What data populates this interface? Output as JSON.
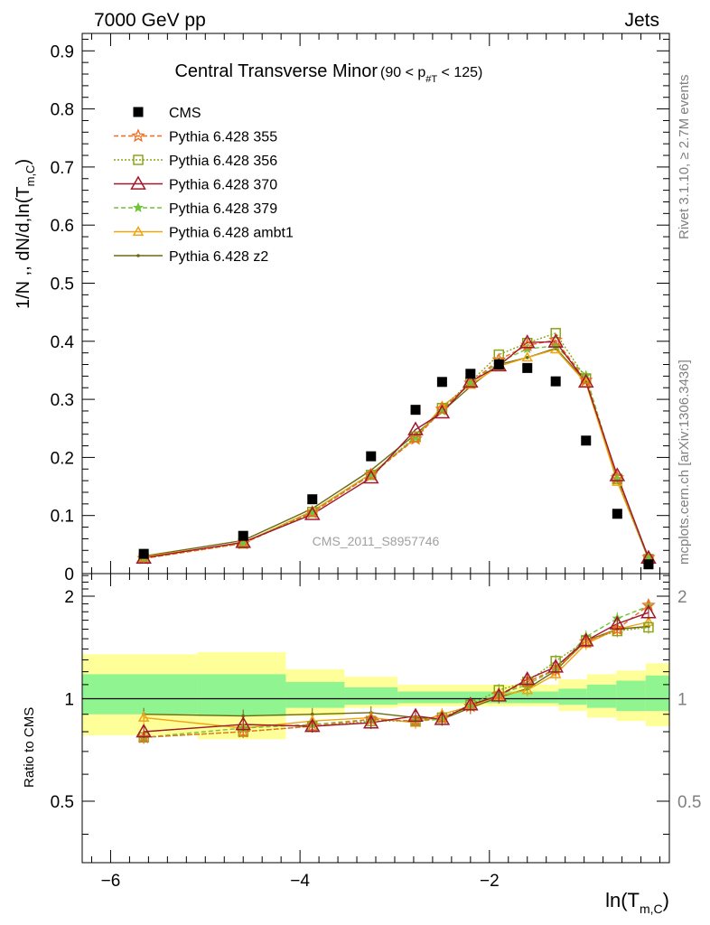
{
  "header": {
    "energy_label": "7000 GeV pp",
    "process_label": "Jets",
    "rivet_label": "Rivet 3.1.10, ≥ 2.7M events",
    "mcplots_label": "mcplots.cern.ch [arXiv:1306.3436]",
    "analysis_label": "CMS_2011_S8957746"
  },
  "colors": {
    "data": "#000000",
    "p355": "#f36b1e",
    "p356": "#8aa51a",
    "p370": "#a0182b",
    "p379": "#72c43a",
    "ambt1": "#f0a413",
    "z2": "#6b6a12",
    "band_inner": "#90f490",
    "band_outer": "#ffff99"
  },
  "chart_data": [
    {
      "type": "scatter",
      "title_main": "Central Transverse Minor",
      "title_cut": "(90 < p",
      "title_cut_sub": "#T",
      "title_cut_end": "  < 125)",
      "ylabel": "1/N ,, dN/d,ln(T",
      "ylabel_sub": "m,C",
      "ylabel_end": ")",
      "xlim": [
        -6.3,
        -0.1
      ],
      "ylim": [
        0,
        0.93
      ],
      "yticks": [
        "0",
        "0.1",
        "0.2",
        "0.3",
        "0.4",
        "0.5",
        "0.6",
        "0.7",
        "0.8",
        "0.9"
      ],
      "x": [
        -5.65,
        -4.6,
        -3.87,
        -3.25,
        -2.78,
        -2.5,
        -2.2,
        -1.9,
        -1.6,
        -1.3,
        -0.98,
        -0.65,
        -0.32
      ],
      "series": [
        {
          "key": "data",
          "name": "CMS",
          "marker": "square",
          "values": [
            0.034,
            0.065,
            0.128,
            0.202,
            0.282,
            0.33,
            0.344,
            0.36,
            0.354,
            0.331,
            0.229,
            0.103,
            0.016
          ]
        },
        {
          "key": "p355",
          "name": "Pythia 6.428 355",
          "marker": "star",
          "dash": "5,3",
          "values": [
            0.026,
            0.052,
            0.105,
            0.17,
            0.232,
            0.283,
            0.328,
            0.368,
            0.393,
            0.402,
            0.333,
            0.165,
            0.028
          ]
        },
        {
          "key": "p356",
          "name": "Pythia 6.428 356",
          "marker": "open-square",
          "dash": "2,2",
          "values": [
            0.026,
            0.052,
            0.106,
            0.17,
            0.236,
            0.285,
            0.33,
            0.377,
            0.397,
            0.414,
            0.336,
            0.163,
            0.025
          ]
        },
        {
          "key": "p370",
          "name": "Pythia 6.428 370",
          "marker": "open-triangle",
          "values": [
            0.027,
            0.054,
            0.102,
            0.165,
            0.248,
            0.277,
            0.33,
            0.358,
            0.398,
            0.399,
            0.33,
            0.169,
            0.027
          ]
        },
        {
          "key": "p379",
          "name": "Pythia 6.428 379",
          "marker": "small-star",
          "dash": "5,3",
          "values": [
            0.026,
            0.053,
            0.106,
            0.171,
            0.235,
            0.28,
            0.328,
            0.364,
            0.387,
            0.392,
            0.341,
            0.163,
            0.028
          ]
        },
        {
          "key": "ambt1",
          "name": "Pythia 6.428 ambt1",
          "marker": "open-triangle-small",
          "values": [
            0.029,
            0.053,
            0.108,
            0.172,
            0.233,
            0.288,
            0.325,
            0.357,
            0.372,
            0.386,
            0.328,
            0.158,
            0.027
          ]
        },
        {
          "key": "z2",
          "name": "Pythia 6.428 z2",
          "marker": "dot",
          "values": [
            0.03,
            0.057,
            0.112,
            0.178,
            0.24,
            0.279,
            0.322,
            0.36,
            0.372,
            0.388,
            0.331,
            0.16,
            0.025
          ]
        }
      ],
      "legend_position": "top-left"
    },
    {
      "type": "line",
      "ylabel": "Ratio to CMS",
      "xlabel": "ln(T",
      "xlabel_sub": "m,C",
      "xlabel_end": ")",
      "xlim": [
        -6.3,
        -0.1
      ],
      "ylim": [
        0.33,
        2.33
      ],
      "xticks": [
        -6,
        -4,
        -2
      ],
      "xtick_labels": [
        "−6",
        "−4",
        "−2"
      ],
      "yticks": [
        0.5,
        1,
        2
      ],
      "ytick_labels": [
        "0.5",
        "1",
        "2"
      ],
      "reference": 1,
      "bands": [
        {
          "x0": -6.3,
          "x1": -5.08,
          "inner": [
            0.9,
            1.18
          ],
          "outer": [
            0.78,
            1.35
          ]
        },
        {
          "x0": -5.08,
          "x1": -4.15,
          "inner": [
            0.89,
            1.18
          ],
          "outer": [
            0.76,
            1.37
          ]
        },
        {
          "x0": -4.15,
          "x1": -3.53,
          "inner": [
            0.94,
            1.12
          ],
          "outer": [
            0.89,
            1.22
          ]
        },
        {
          "x0": -3.53,
          "x1": -2.97,
          "inner": [
            0.96,
            1.08
          ],
          "outer": [
            0.94,
            1.16
          ]
        },
        {
          "x0": -2.97,
          "x1": -1.27,
          "inner": [
            0.97,
            1.05
          ],
          "outer": [
            0.95,
            1.1
          ]
        },
        {
          "x0": -1.27,
          "x1": -0.97,
          "inner": [
            0.96,
            1.07
          ],
          "outer": [
            0.92,
            1.14
          ]
        },
        {
          "x0": -0.97,
          "x1": -0.66,
          "inner": [
            0.94,
            1.1
          ],
          "outer": [
            0.88,
            1.18
          ]
        },
        {
          "x0": -0.66,
          "x1": -0.35,
          "inner": [
            0.92,
            1.13
          ],
          "outer": [
            0.86,
            1.21
          ]
        },
        {
          "x0": -0.35,
          "x1": -0.1,
          "inner": [
            0.92,
            1.17
          ],
          "outer": [
            0.83,
            1.27
          ]
        }
      ],
      "series": [
        {
          "key": "p355",
          "values": [
            0.77,
            0.8,
            0.83,
            0.87,
            0.86,
            0.88,
            0.95,
            1.03,
            1.12,
            1.22,
            1.47,
            1.6,
            1.88
          ]
        },
        {
          "key": "p356",
          "values": [
            0.77,
            0.8,
            0.83,
            0.86,
            0.86,
            0.88,
            0.96,
            1.06,
            1.12,
            1.29,
            1.48,
            1.58,
            1.62
          ]
        },
        {
          "key": "p370",
          "values": [
            0.8,
            0.84,
            0.83,
            0.85,
            0.89,
            0.87,
            0.96,
            1.02,
            1.14,
            1.24,
            1.48,
            1.66,
            1.79
          ]
        },
        {
          "key": "p379",
          "values": [
            0.77,
            0.82,
            0.84,
            0.87,
            0.86,
            0.87,
            0.95,
            1.03,
            1.1,
            1.22,
            1.52,
            1.72,
            1.87
          ]
        },
        {
          "key": "ambt1",
          "values": [
            0.88,
            0.82,
            0.86,
            0.88,
            0.85,
            0.9,
            0.95,
            1.02,
            1.06,
            1.18,
            1.45,
            1.6,
            1.68
          ]
        },
        {
          "key": "z2",
          "values": [
            0.9,
            0.89,
            0.9,
            0.91,
            0.88,
            0.87,
            0.94,
            1.01,
            1.07,
            1.21,
            1.48,
            1.6,
            1.63
          ]
        }
      ]
    }
  ]
}
